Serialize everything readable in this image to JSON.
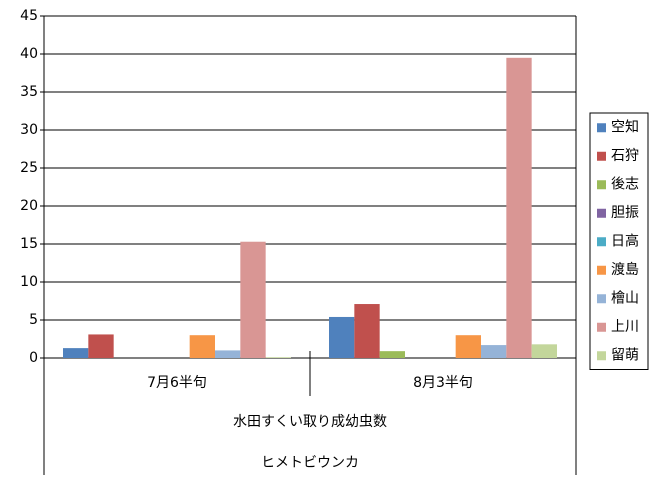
{
  "chart_data": {
    "type": "bar",
    "categories": [
      "7月6半句",
      "8月3半句"
    ],
    "category_levels": [
      "水田すくい取り成幼虫数",
      "ヒメトビウンカ"
    ],
    "series": [
      {
        "name": "空知",
        "color": "#4f81bd",
        "values": [
          1.3,
          5.4
        ]
      },
      {
        "name": "石狩",
        "color": "#c0504d",
        "values": [
          3.1,
          7.1
        ]
      },
      {
        "name": "後志",
        "color": "#9bbb59",
        "values": [
          0,
          0.9
        ]
      },
      {
        "name": "胆振",
        "color": "#8064a2",
        "values": [
          0,
          0
        ]
      },
      {
        "name": "日高",
        "color": "#4bacc6",
        "values": [
          0,
          0
        ]
      },
      {
        "name": "渡島",
        "color": "#f79646",
        "values": [
          3.0,
          3.0
        ]
      },
      {
        "name": "檜山",
        "color": "#95b3d7",
        "values": [
          1.0,
          1.7
        ]
      },
      {
        "name": "上川",
        "color": "#d99694",
        "values": [
          15.3,
          39.5
        ]
      },
      {
        "name": "留萌",
        "color": "#c3d69b",
        "values": [
          0.1,
          1.8
        ]
      }
    ],
    "ylim": [
      0,
      45
    ],
    "yticks": [
      0,
      5,
      10,
      15,
      20,
      25,
      30,
      35,
      40,
      45
    ],
    "grid": true,
    "legend": "right"
  }
}
